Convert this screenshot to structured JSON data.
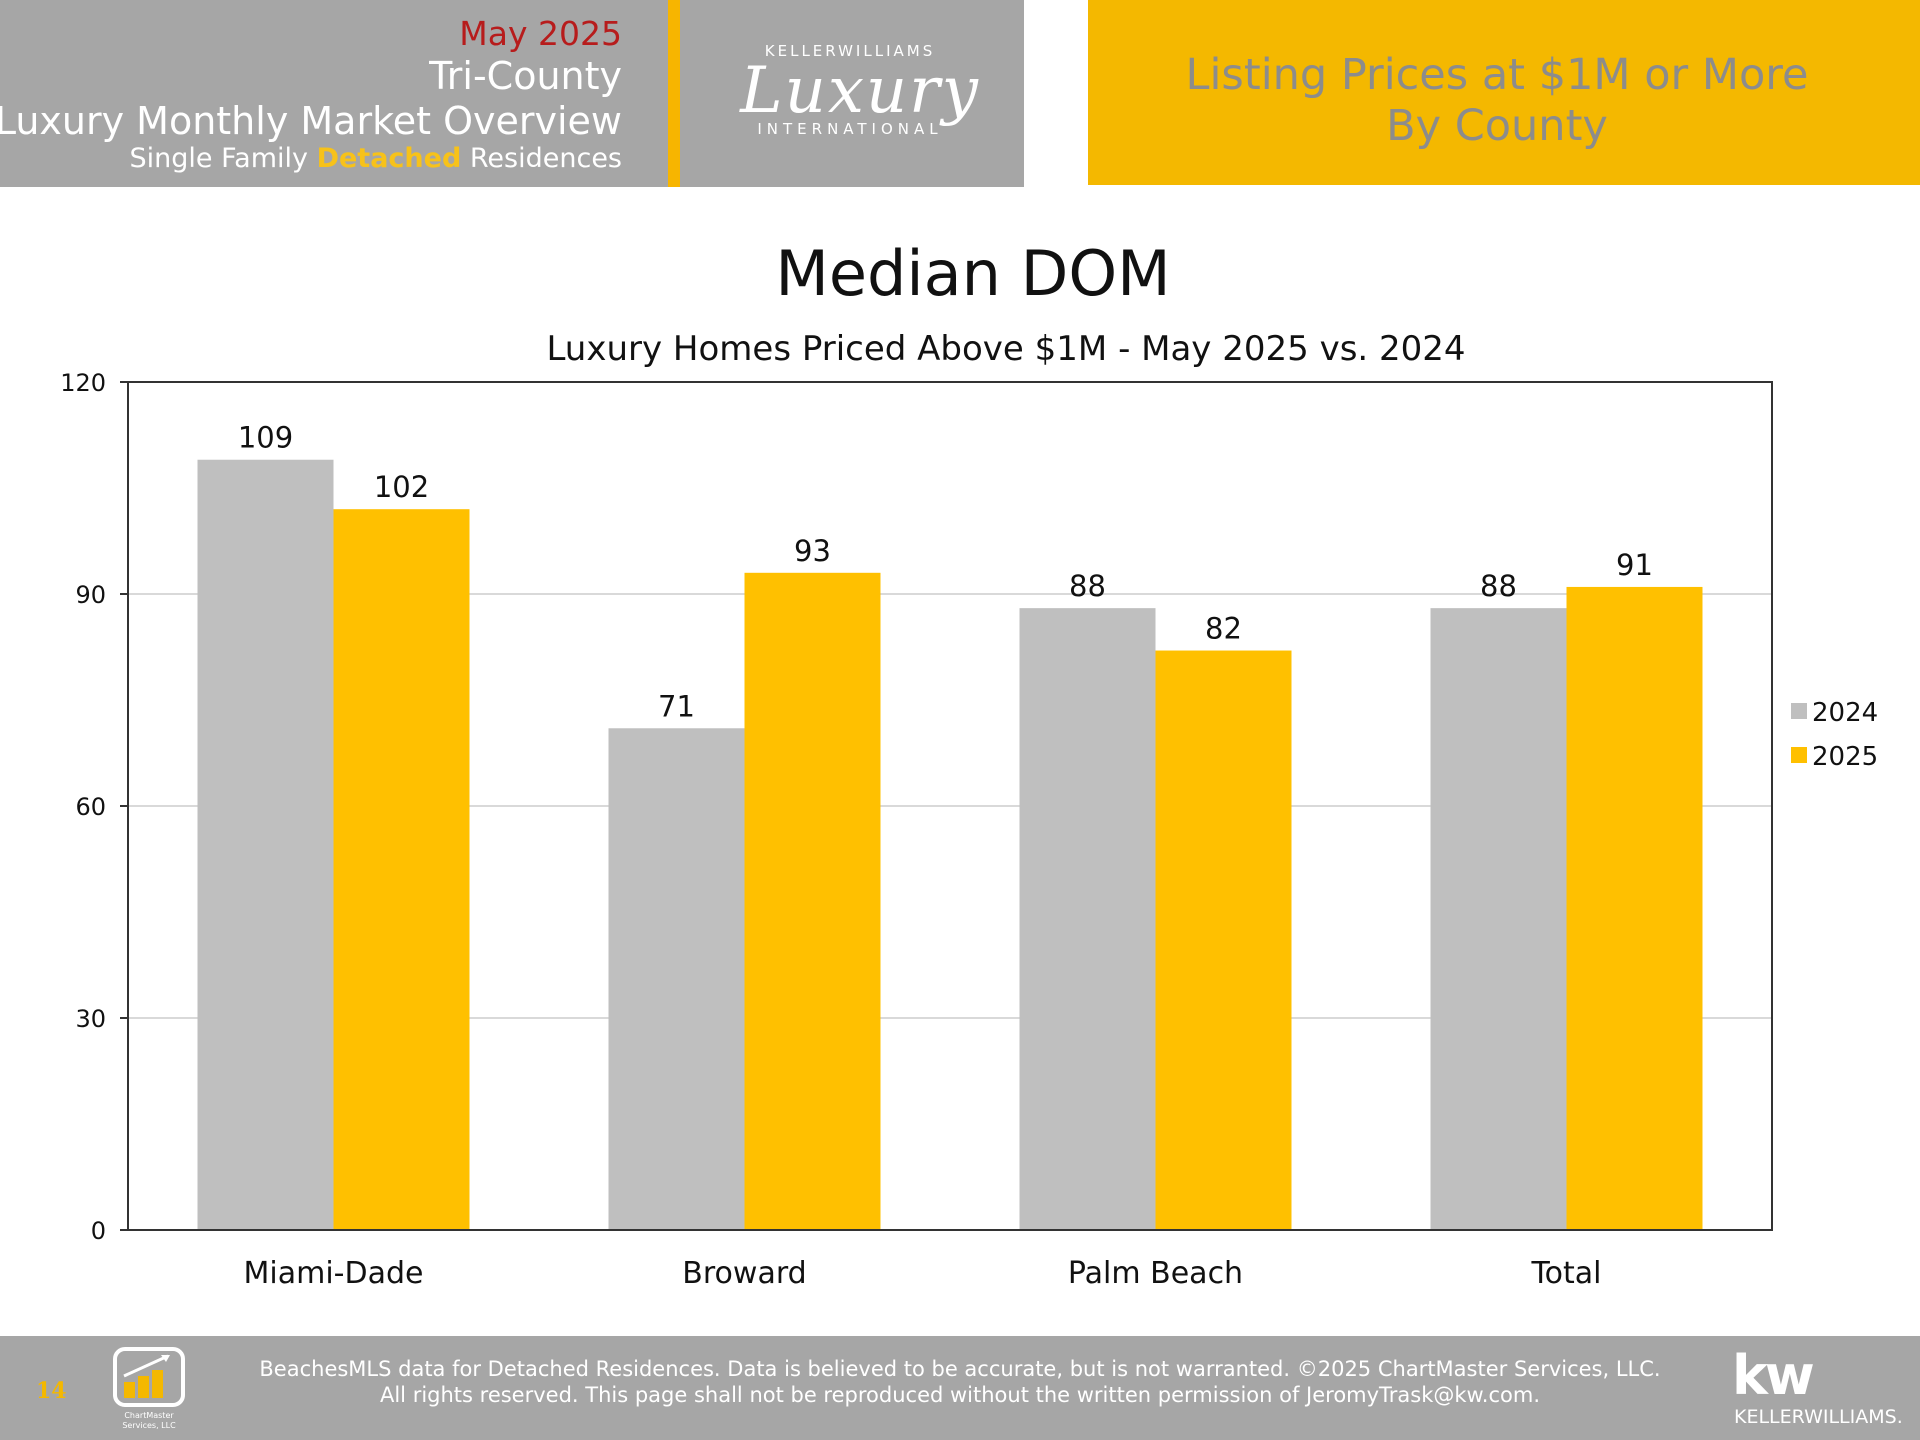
{
  "header": {
    "month": "May 2025",
    "region": "Tri-County",
    "overview": "Luxury Monthly Market Overview",
    "type_prefix": "Single Family ",
    "type_highlight": "Detached",
    "type_suffix": " Residences",
    "logo_top": "KELLERWILLIAMS",
    "logo_script": "Luxury",
    "logo_bottom": "INTERNATIONAL",
    "right_line1": "Listing Prices at $1M or More",
    "right_line2": "By County"
  },
  "chart_data": {
    "type": "bar",
    "title": "Median DOM",
    "subtitle": "Luxury Homes Priced Above $1M - May 2025 vs. 2024",
    "categories": [
      "Miami-Dade",
      "Broward",
      "Palm Beach",
      "Total"
    ],
    "series": [
      {
        "name": "2024",
        "values": [
          109,
          71,
          88,
          88
        ],
        "color": "#bfbfbf"
      },
      {
        "name": "2025",
        "values": [
          102,
          93,
          82,
          91
        ],
        "color": "#ffc000"
      }
    ],
    "ylim": [
      0,
      120
    ],
    "yticks": [
      0,
      30,
      60,
      90,
      120
    ],
    "grid": true,
    "legend": "right",
    "xlabel": "",
    "ylabel": ""
  },
  "footer": {
    "page_number": "14",
    "chartmaster_label": "ChartMaster Services, LLC",
    "line1": "BeachesMLS data for Detached Residences.  Data is believed to be accurate, but is not warranted.   ©2025  ChartMaster Services, LLC.",
    "line2": "All rights reserved. This page shall not be reproduced without the written permission of JeromyTrask@kw.com.",
    "kw_mark": "kw",
    "kw_name": "KELLERWILLIAMS."
  }
}
